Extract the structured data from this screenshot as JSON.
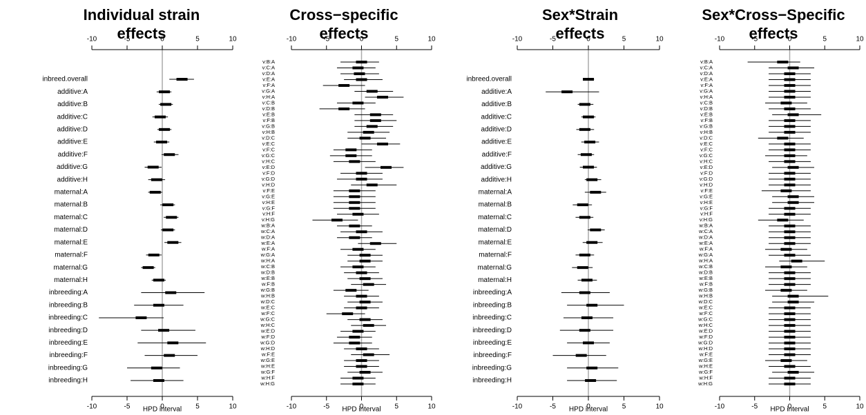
{
  "chart_data": [
    {
      "type": "forest",
      "title": "Individual strain effects",
      "xlabel": "HPD interval",
      "xlim": [
        -10,
        10
      ],
      "xticks": [
        -10,
        -5,
        0,
        5,
        10
      ],
      "categories": [
        "inbreed.overall",
        "additive:A",
        "additive:B",
        "additive:C",
        "additive:D",
        "additive:E",
        "additive:F",
        "additive:G",
        "additive:H",
        "maternal:A",
        "maternal:B",
        "maternal:C",
        "maternal:D",
        "maternal:E",
        "maternal:F",
        "maternal:G",
        "maternal:H",
        "inbreeding:A",
        "inbreeding:B",
        "inbreeding:C",
        "inbreeding:D",
        "inbreeding:E",
        "inbreeding:F",
        "inbreeding:G",
        "inbreeding:H"
      ],
      "median": [
        2.8,
        0.3,
        0.5,
        -0.3,
        0.3,
        -0.1,
        1,
        -1.3,
        -0.8,
        -1,
        0.8,
        1.3,
        0.8,
        1.5,
        -1.2,
        -2,
        -0.5,
        1.2,
        -0.5,
        -3,
        0.2,
        1.5,
        1,
        -0.8,
        -0.5
      ],
      "lower": [
        1,
        -0.8,
        -0.5,
        -1.4,
        -0.7,
        -1.2,
        -0.1,
        -2.5,
        -2,
        -2,
        -0.3,
        0.2,
        -0.2,
        0.3,
        -2.3,
        -3,
        -1.5,
        -3,
        -4,
        -9,
        -3,
        -3.5,
        -2.5,
        -5,
        -4.5
      ],
      "upper": [
        4.5,
        1.3,
        1.5,
        0.8,
        1.3,
        1,
        2.3,
        -0.1,
        0.4,
        0,
        1.8,
        2.3,
        1.8,
        2.7,
        -0.1,
        -1,
        0.5,
        6,
        3,
        0.2,
        4.7,
        6.2,
        5,
        2.5,
        3
      ]
    },
    {
      "type": "forest",
      "title": "Cross−specific effects",
      "xlabel": "HPD interval",
      "xlim": [
        -10,
        10
      ],
      "xticks": [
        -10,
        -5,
        0,
        5,
        10
      ],
      "categories": [
        "v:B:A",
        "v:C:A",
        "v:D:A",
        "v:E:A",
        "v:F:A",
        "v:G:A",
        "v:H:A",
        "v:C:B",
        "v:D:B",
        "v:E:B",
        "v:F:B",
        "v:G:B",
        "v:H:B",
        "v:D:C",
        "v:E:C",
        "v:F:C",
        "v:G:C",
        "v:H:C",
        "v:E:D",
        "v:F:D",
        "v:G:D",
        "v:H:D",
        "v:F:E",
        "v:G:E",
        "v:H:E",
        "v:G:F",
        "v:H:F",
        "v:H:G",
        "w:B:A",
        "w:C:A",
        "w:D:A",
        "w:E:A",
        "w:F:A",
        "w:G:A",
        "w:H:A",
        "w:C:B",
        "w:D:B",
        "w:E:B",
        "w:F:B",
        "w:G:B",
        "w:H:B",
        "w:D:C",
        "w:E:C",
        "w:F:C",
        "w:G:C",
        "w:H:C",
        "w:E:D",
        "w:F:D",
        "w:G:D",
        "w:H:D",
        "w:F:E",
        "w:G:E",
        "w:H:E",
        "w:G:F",
        "w:H:F",
        "w:H:G"
      ],
      "median": [
        0,
        -0.5,
        -0.3,
        0,
        -2.5,
        1.5,
        3,
        -0.5,
        -2.5,
        2,
        2,
        1.5,
        1,
        0.5,
        3,
        -1.5,
        -1.5,
        -1,
        3.5,
        0,
        0,
        1.5,
        -1,
        -1,
        -1,
        -1,
        -0.5,
        -3.5,
        -1,
        0,
        -1,
        2,
        -0.5,
        0.5,
        0.5,
        -0.5,
        0,
        0.5,
        1,
        -1.5,
        0,
        0.5,
        0,
        -2,
        0.5,
        1,
        -0.5,
        -1,
        -1,
        0,
        1,
        0,
        0,
        0.5,
        -0.5,
        -0.5
      ],
      "lower": [
        -3,
        -3.5,
        -3,
        -2.5,
        -5.5,
        -1,
        0.5,
        -3.5,
        -6,
        -1,
        -1,
        -1,
        -2,
        -2,
        0,
        -4,
        -4.5,
        -4,
        0.5,
        -3,
        -3.5,
        -1.5,
        -4,
        -4,
        -4,
        -4,
        -3.5,
        -7,
        -3.5,
        -3,
        -3.5,
        -0.5,
        -3,
        -2,
        -2,
        -3,
        -2.5,
        -2,
        -1.5,
        -4,
        -2.5,
        -2,
        -2.5,
        -5,
        -2,
        -1.5,
        -3,
        -3.5,
        -4,
        -2.5,
        -1.5,
        -2.5,
        -2.5,
        -2,
        -3,
        -3
      ],
      "upper": [
        2.5,
        2,
        2.5,
        3,
        0.5,
        4.5,
        6,
        2,
        0.5,
        4.5,
        5,
        4.5,
        4,
        3.5,
        5.5,
        1.5,
        1.5,
        2,
        6,
        3,
        3,
        5,
        2,
        2,
        2,
        2,
        2.5,
        -0.5,
        1.5,
        3,
        1.5,
        5,
        2,
        3,
        3,
        2,
        2.5,
        3,
        3.5,
        1,
        2.5,
        3,
        2.5,
        0.5,
        3,
        3.5,
        2,
        1.5,
        1.5,
        2.5,
        4,
        2.5,
        2.5,
        3,
        2,
        2
      ]
    },
    {
      "type": "forest",
      "title": "Sex*Strain effects",
      "xlabel": "HPD interval",
      "xlim": [
        -10,
        10
      ],
      "xticks": [
        -10,
        -5,
        0,
        5,
        10
      ],
      "categories": [
        "inbreed.overall",
        "additive:A",
        "additive:B",
        "additive:C",
        "additive:D",
        "additive:E",
        "additive:F",
        "additive:G",
        "additive:H",
        "maternal:A",
        "maternal:B",
        "maternal:C",
        "maternal:D",
        "maternal:E",
        "maternal:F",
        "maternal:G",
        "maternal:H",
        "inbreeding:A",
        "inbreeding:B",
        "inbreeding:C",
        "inbreeding:D",
        "inbreeding:E",
        "inbreeding:F",
        "inbreeding:G",
        "inbreeding:H"
      ],
      "median": [
        0,
        -3,
        -0.5,
        0,
        -0.5,
        0.2,
        -0.3,
        0,
        0.5,
        1,
        -0.8,
        -0.5,
        1,
        0.5,
        -0.5,
        -0.8,
        -0.2,
        -0.5,
        0.5,
        -0.2,
        -0.5,
        0,
        -1,
        0.5,
        0.3
      ],
      "lower": [
        -0.7,
        -6,
        -1.5,
        -1,
        -1.7,
        -1,
        -1.5,
        -1.2,
        -0.5,
        -0.5,
        -2.2,
        -1.8,
        -0.1,
        -0.8,
        -1.8,
        -2.3,
        -1.5,
        -3.8,
        -3,
        -3.5,
        -4,
        -3,
        -5,
        -3,
        -3
      ],
      "upper": [
        0.8,
        1.5,
        0.7,
        1,
        0.8,
        1.5,
        0.8,
        1.2,
        1.8,
        2.5,
        0.5,
        0.7,
        2.3,
        2,
        0.8,
        0.6,
        1.2,
        3,
        5,
        3.5,
        3.5,
        3,
        2.5,
        4.2,
        4
      ]
    },
    {
      "type": "forest",
      "title": "Sex*Cross−Specific effects",
      "xlabel": "HPD interval",
      "xlim": [
        -10,
        10
      ],
      "xticks": [
        -10,
        -5,
        0,
        5,
        10
      ],
      "categories": [
        "v:B:A",
        "v:C:A",
        "v:D:A",
        "v:E:A",
        "v:F:A",
        "v:G:A",
        "v:H:A",
        "v:C:B",
        "v:D:B",
        "v:E:B",
        "v:F:B",
        "v:G:B",
        "v:H:B",
        "v:D:C",
        "v:E:C",
        "v:F:C",
        "v:G:C",
        "v:H:C",
        "v:E:D",
        "v:F:D",
        "v:G:D",
        "v:H:D",
        "v:F:E",
        "v:G:E",
        "v:H:E",
        "v:G:F",
        "v:H:F",
        "v:H:G",
        "w:B:A",
        "w:C:A",
        "w:D:A",
        "w:E:A",
        "w:F:A",
        "w:G:A",
        "w:H:A",
        "w:C:B",
        "w:D:B",
        "w:E:B",
        "w:F:B",
        "w:G:B",
        "w:H:B",
        "w:D:C",
        "w:E:C",
        "w:F:C",
        "w:G:C",
        "w:H:C",
        "w:E:D",
        "w:F:D",
        "w:G:D",
        "w:H:D",
        "w:F:E",
        "w:G:E",
        "w:H:E",
        "w:G:F",
        "w:H:F",
        "w:H:G"
      ],
      "median": [
        -1,
        0.5,
        0,
        0,
        0,
        0,
        0,
        -0.5,
        0,
        0.5,
        0,
        0,
        0,
        -1,
        0,
        0,
        0,
        0,
        0.5,
        0,
        0,
        0,
        -0.5,
        0.5,
        0.5,
        0,
        0,
        -1,
        0,
        0,
        0,
        0,
        -0.5,
        0,
        1,
        -0.5,
        0,
        0,
        0,
        -0.5,
        0.5,
        0.5,
        0,
        0,
        0,
        0,
        0,
        0,
        0,
        0,
        0,
        -0.5,
        0,
        0.5,
        0,
        0
      ],
      "lower": [
        -6,
        -3,
        -3,
        -3,
        -3,
        -3,
        -3,
        -3.5,
        -3,
        -2.5,
        -3,
        -3,
        -3,
        -4.5,
        -3,
        -3,
        -3.5,
        -3,
        -2.5,
        -3,
        -3,
        -3,
        -4,
        -2.5,
        -2.5,
        -3,
        -3,
        -4.5,
        -3,
        -3,
        -3,
        -3,
        -3.5,
        -3,
        -1.5,
        -3.5,
        -3,
        -3,
        -3,
        -3.5,
        -2.5,
        -2.5,
        -3,
        -3,
        -3,
        -3,
        -3,
        -3,
        -3,
        -3,
        -3,
        -3.5,
        -3,
        -2.5,
        -3,
        -3
      ],
      "upper": [
        1.5,
        3.5,
        3,
        3,
        3,
        3,
        3,
        2.5,
        3,
        4.5,
        3,
        3,
        3,
        2,
        3,
        3,
        2.5,
        3,
        3.5,
        3,
        3,
        3,
        3,
        3.5,
        3.5,
        3,
        3,
        2,
        3,
        3,
        3,
        3,
        2.5,
        3,
        5,
        2.5,
        3,
        3,
        3,
        2.5,
        5.5,
        3.5,
        3,
        3,
        3,
        3,
        3,
        3,
        3,
        3,
        3,
        2.5,
        3,
        3.5,
        3,
        3
      ]
    }
  ]
}
